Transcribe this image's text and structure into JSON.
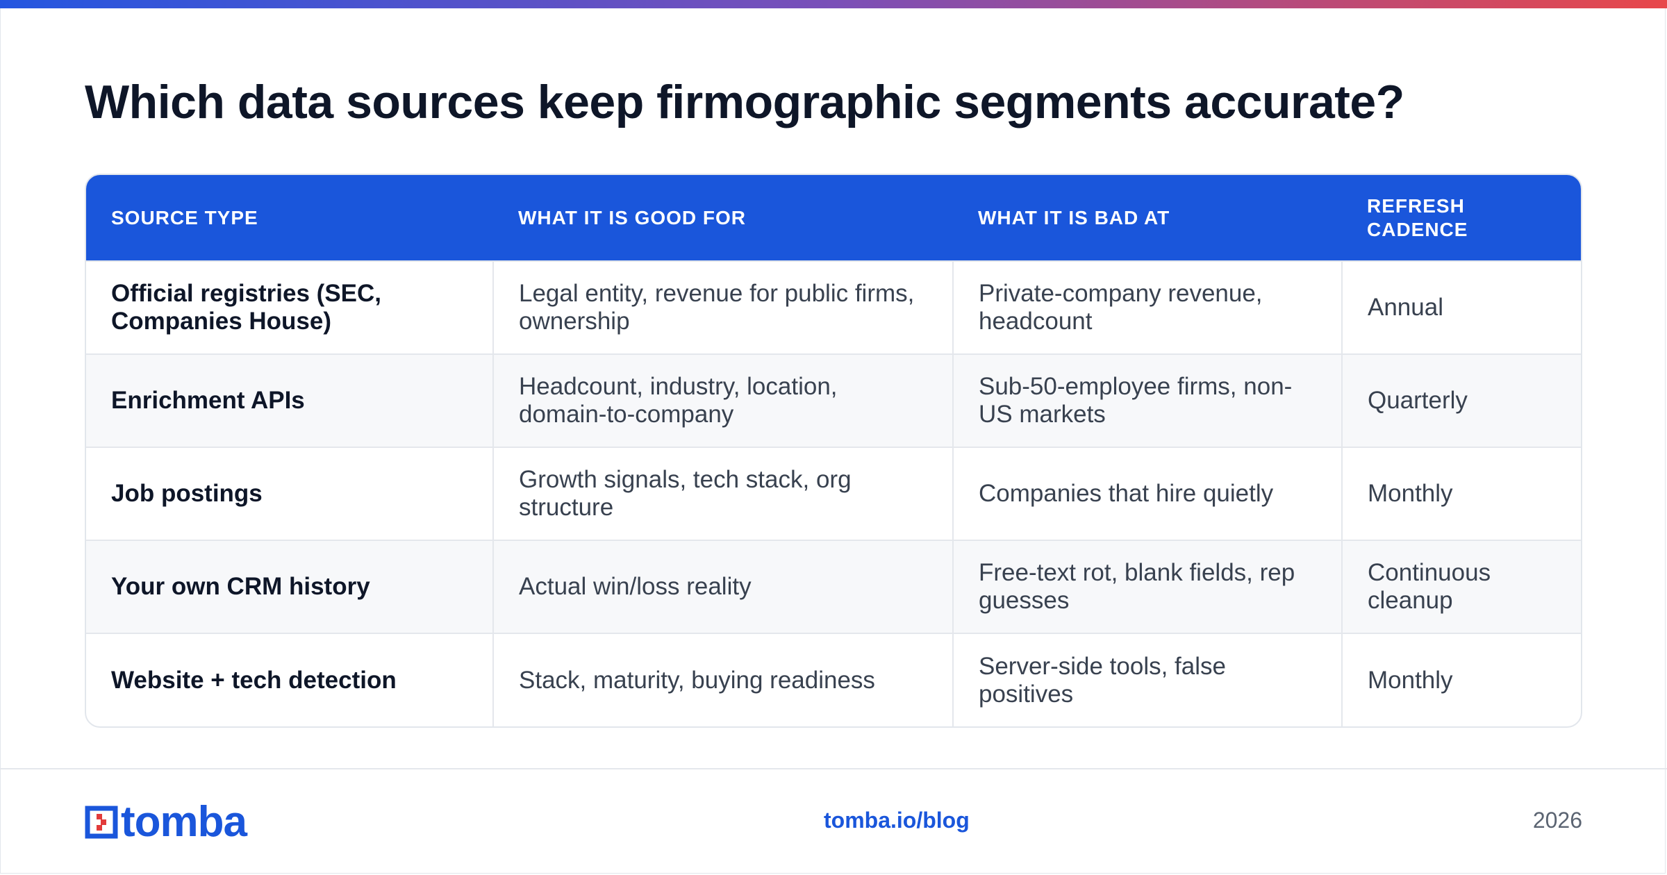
{
  "header": {
    "title": "Which data sources keep firmographic segments accurate?"
  },
  "table": {
    "columns": [
      "SOURCE TYPE",
      "WHAT IT IS GOOD FOR",
      "WHAT IT IS BAD AT",
      "REFRESH CADENCE"
    ],
    "rows": [
      [
        "Official registries (SEC, Companies House)",
        "Legal entity, revenue for public firms, ownership",
        "Private-company revenue, headcount",
        "Annual"
      ],
      [
        "Enrichment APIs",
        "Headcount, industry, location, domain-to-company",
        "Sub-50-employee firms, non-US markets",
        "Quarterly"
      ],
      [
        "Job postings",
        "Growth signals, tech stack, org structure",
        "Companies that hire quietly",
        "Monthly"
      ],
      [
        "Your own CRM history",
        "Actual win/loss reality",
        "Free-text rot, blank fields, rep guesses",
        "Continuous cleanup"
      ],
      [
        "Website + tech detection",
        "Stack, maturity, buying readiness",
        "Server-side tools, false positives",
        "Monthly"
      ]
    ]
  },
  "footer": {
    "brand": "tomba",
    "link": "tomba.io/blog",
    "year": "2026"
  },
  "colors": {
    "accent": "#1a56db",
    "gradient_start": "#2456e0",
    "gradient_end": "#e8474a",
    "logo_red": "#e23b3b"
  },
  "icons": {
    "logo": "tomba-logo-icon"
  }
}
